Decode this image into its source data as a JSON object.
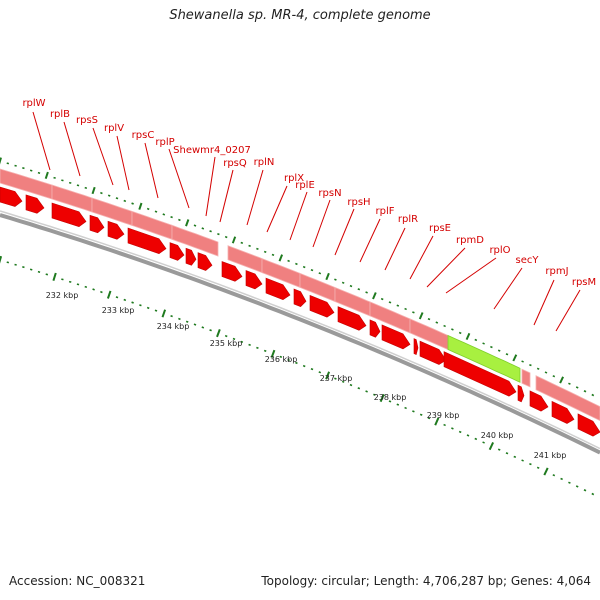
{
  "title": "Shewanella sp. MR-4, complete genome",
  "footer": {
    "accession": "Accession: NC_008321",
    "summary": "Topology: circular; Length: 4,706,287 bp; Genes: 4,064"
  },
  "colors": {
    "label": "#d40000",
    "cds_band": "#f08080",
    "highlight": "#a8f040",
    "arrow": "#ee0000",
    "ticks": "#1f7a1f"
  },
  "gene_labels": [
    "rplW",
    "rplB",
    "rpsS",
    "rplV",
    "rpsC",
    "rplP",
    "Shewmr4_0207",
    "rpsQ",
    "rplN",
    "rplX",
    "rplE",
    "rpsN",
    "rpsH",
    "rplF",
    "rplR",
    "rpsE",
    "rpmD",
    "rplO",
    "secY",
    "rpmJ",
    "rpsM"
  ],
  "highlighted_gene": "secY",
  "scale_labels": [
    "232 kbp",
    "233 kbp",
    "234 kbp",
    "235 kbp",
    "236 kbp",
    "237 kbp",
    "238 kbp",
    "239 kbp",
    "240 kbp",
    "241 kbp"
  ]
}
